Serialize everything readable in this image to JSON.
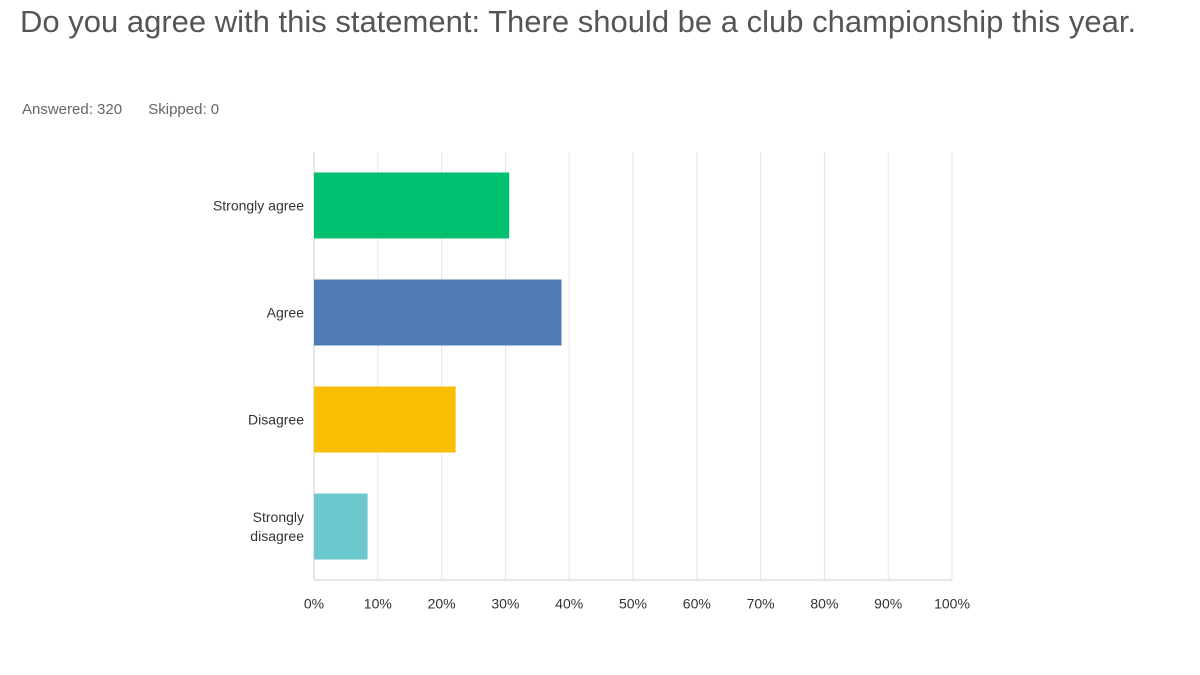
{
  "chart_data": {
    "type": "bar",
    "orientation": "horizontal",
    "title": "Do you agree with this statement: There should be a club championship this year.",
    "answered": "Answered: 320",
    "skipped": "Skipped: 0",
    "categories": [
      "Strongly agree",
      "Agree",
      "Disagree",
      "Strongly disagree"
    ],
    "values": [
      30.6,
      38.8,
      22.2,
      8.4
    ],
    "colors": [
      "#00bf6f",
      "#507cb6",
      "#f9be00",
      "#6bc8cd"
    ],
    "xlim": [
      0,
      100
    ],
    "xticks": [
      {
        "value": 0,
        "label": "0%"
      },
      {
        "value": 10,
        "label": "10%"
      },
      {
        "value": 20,
        "label": "20%"
      },
      {
        "value": 30,
        "label": "30%"
      },
      {
        "value": 40,
        "label": "40%"
      },
      {
        "value": 50,
        "label": "50%"
      },
      {
        "value": 60,
        "label": "60%"
      },
      {
        "value": 70,
        "label": "70%"
      },
      {
        "value": 80,
        "label": "80%"
      },
      {
        "value": 90,
        "label": "90%"
      },
      {
        "value": 100,
        "label": "100%"
      }
    ],
    "grid": true
  }
}
